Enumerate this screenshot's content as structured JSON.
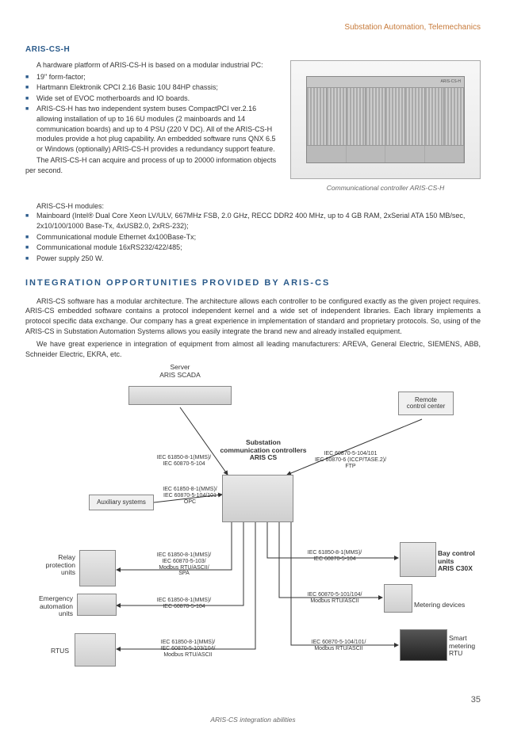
{
  "header": "Substation Automation, Telemechanics",
  "section1": {
    "title": "ARIS-CS-H",
    "intro": "A hardware platform of ARIS-CS-H is based on a modular industrial PC:",
    "bullets1": [
      "19\" form-factor;",
      "Hartmann Elektronik CPCI 2.16 Basic 10U 84HP chassis;",
      "Wide set of EVOC motherboards and IO boards.",
      "ARIS-CS-H has two independent system buses CompactPCI ver.2.16 allowing installation of up to 16 6U modules (2 mainboards and 14 communication boards) and up to 4 PSU (220 V DC). All of the ARIS-CS-H modules provide a hot plug capability. An embedded software runs QNX 6.5 or Windows (optionally) ARIS-CS-H provides a redundancy support feature."
    ],
    "cont": "The ARIS-CS-H can acquire and process of up to 20000 information objects per second.",
    "caption": "Communicational controller ARIS-CS-H",
    "sub": "ARIS-CS-H modules:",
    "bullets2": [
      "Mainboard (Intel® Dual Core Xeon LV/ULV, 667MHz FSB, 2.0 GHz, RECC DDR2 400 MHz, up to 4 GB RAM, 2xSerial ATA 150 MB/sec, 2x10/100/1000 Base-Tx, 4xUSB2.0, 2xRS-232);",
      "Communicational module Ethernet 4x100Base-Tx;",
      "Communicational module 16xRS232/422/485;",
      "Power supply 250 W."
    ]
  },
  "section2": {
    "title": "INTEGRATION OPPORTUNITIES PROVIDED BY ARIS-CS",
    "p1": "ARIS-CS software has a modular architecture. The architecture allows each controller to be configured exactly as the given project requires. ARIS-CS embedded software contains a protocol independent kernel and a wide set of independent libraries. Each library implements a protocol specific data exchange. Our company has a great experience in implementation of standard and proprietary protocols. So, using of the ARIS-CS in Substation Automation Systems allows you easily integrate the brand new and already installed equipment.",
    "p2": "We have great experience in integration of equipment from almost all leading manufacturers: AREVA, General Electric, SIEMENS, ABB, Schneider Electric, EKRA, etc."
  },
  "diagram": {
    "labels": {
      "server": "Server\nARIS SCADA",
      "remote": "Remote\ncontrol center",
      "substation": "Substation\ncommunication controllers\nARIS CS",
      "aux": "Auxiliary systems",
      "relay": "Relay\nprotection\nunits",
      "emergency": "Emergency\nautomation\nunits",
      "rtus": "RTUS",
      "bay": "Bay control\nunits\nARIS C30X",
      "metering": "Metering devices",
      "smart": "Smart\nmetering RTU"
    },
    "protocols": {
      "top_left": "IEC 61850-8-1(MMS)/\nIEC 60870-5-104",
      "top_right": "IEC 60870-5-104/101\nIEC 60870-6 (ICCP/TASE.2)/\nFTP",
      "aux": "IEC 61850-8-1(MMS)/\nIEC 60870-5-104/101\nOPC",
      "relay": "IEC 61850-8-1(MMS)/\nIEC 60870-5-103/\nModbus RTU/ASCII/\nSPA",
      "emerg": "IEC 61850-8-1(MMS)/\nIEC 60870-5-104",
      "rtus": "IEC 61850-8-1(MMS)/\nIEC 60870-5-103/104/\nModbus RTU/ASCII",
      "bay": "IEC 61850-8-1(MMS)/\nIEC 60870-5-104",
      "meter": "IEC 60870-5-101/104/\nModbus RTU/ASCII",
      "smart": "IEC 60870-5-104/101/\nModbus RTU/ASCII"
    },
    "caption": "ARIS-CS integration abilities"
  },
  "pageNumber": "35"
}
